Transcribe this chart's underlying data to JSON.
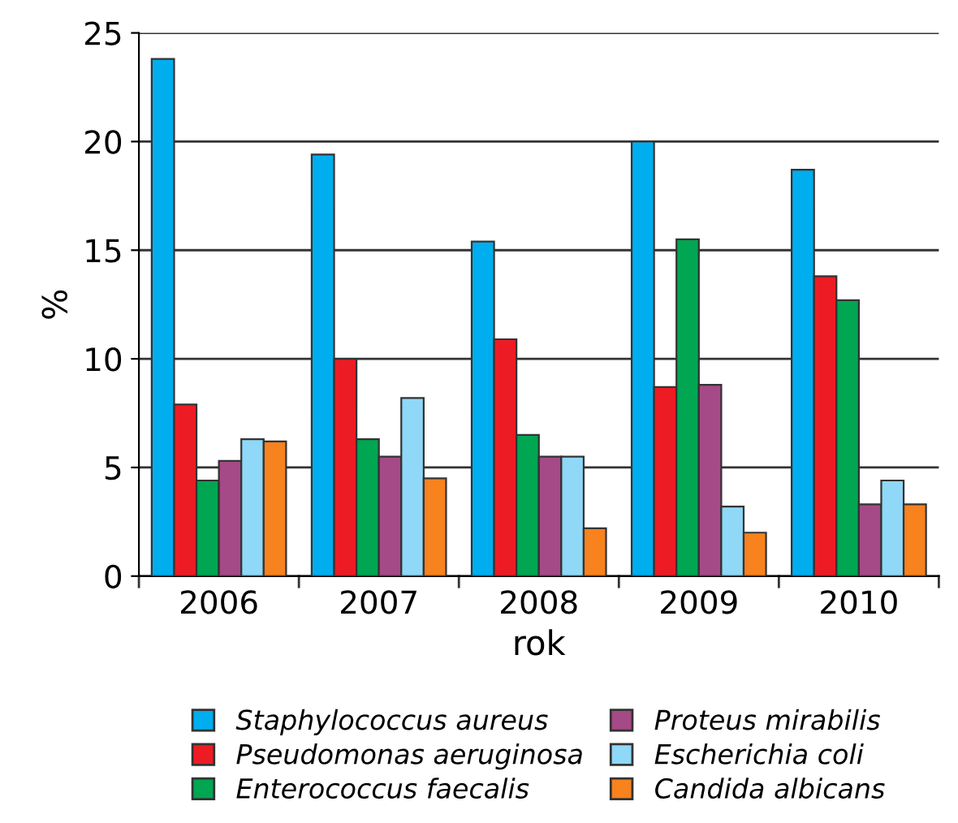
{
  "chart_data": {
    "type": "bar",
    "xlabel": "rok",
    "ylabel": "%",
    "categories": [
      "2006",
      "2007",
      "2008",
      "2009",
      "2010"
    ],
    "series": [
      {
        "name": "Staphylococcus aureus",
        "color": "#00aeef",
        "values": [
          23.8,
          19.4,
          15.4,
          20.0,
          18.7
        ]
      },
      {
        "name": "Pseudomonas aeruginosa",
        "color": "#ed1c24",
        "values": [
          7.9,
          10.0,
          10.9,
          8.7,
          13.8
        ]
      },
      {
        "name": "Enterococcus faecalis",
        "color": "#00a651",
        "values": [
          4.4,
          6.3,
          6.5,
          15.5,
          12.7
        ]
      },
      {
        "name": "Proteus mirabilis",
        "color": "#a54a86",
        "values": [
          5.3,
          5.5,
          5.5,
          8.8,
          3.3
        ]
      },
      {
        "name": "Escherichia coli",
        "color": "#8fd8f8",
        "values": [
          6.3,
          8.2,
          5.5,
          3.2,
          4.4
        ]
      },
      {
        "name": "Candida albicans",
        "color": "#f7821e",
        "values": [
          6.2,
          4.5,
          2.2,
          2.0,
          3.3
        ]
      }
    ],
    "ylim": [
      0,
      25
    ],
    "yticks": [
      0,
      5,
      10,
      15,
      20,
      25
    ],
    "grid": "y",
    "legend": "bottom"
  }
}
